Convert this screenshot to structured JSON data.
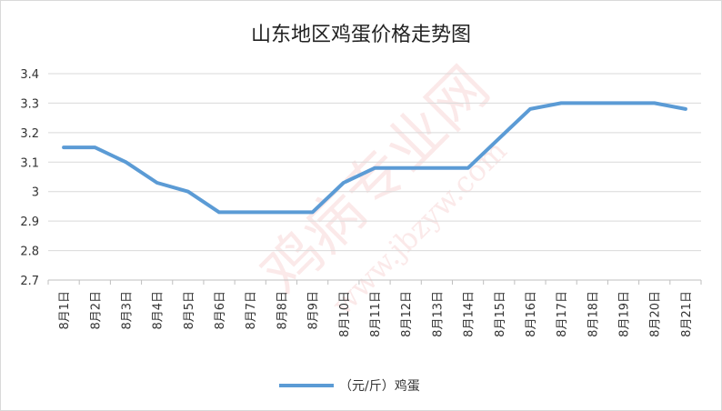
{
  "chart_data": {
    "type": "line",
    "title": "山东地区鸡蛋价格走势图",
    "categories": [
      "8月1日",
      "8月2日",
      "8月3日",
      "8月4日",
      "8月5日",
      "8月6日",
      "8月7日",
      "8月8日",
      "8月9日",
      "8月10日",
      "8月11日",
      "8月12日",
      "8月13日",
      "8月14日",
      "8月15日",
      "8月16日",
      "8月17日",
      "8月18日",
      "8月19日",
      "8月20日",
      "8月21日"
    ],
    "series": [
      {
        "name": "（元/斤）鸡蛋",
        "values": [
          3.15,
          3.15,
          3.1,
          3.03,
          3.0,
          2.93,
          2.93,
          2.93,
          2.93,
          3.03,
          3.08,
          3.08,
          3.08,
          3.08,
          3.18,
          3.28,
          3.3,
          3.3,
          3.3,
          3.3,
          3.28
        ]
      }
    ],
    "ylim": [
      2.7,
      3.4
    ],
    "yticks": [
      "2.7",
      "2.8",
      "2.9",
      "3",
      "3.1",
      "3.2",
      "3.3",
      "3.4"
    ],
    "grid": true,
    "legend_position": "bottom",
    "line_color": "#5b9bd5"
  },
  "watermark": {
    "main": "鸡病专业网",
    "url": "www.jbzyw.com"
  }
}
